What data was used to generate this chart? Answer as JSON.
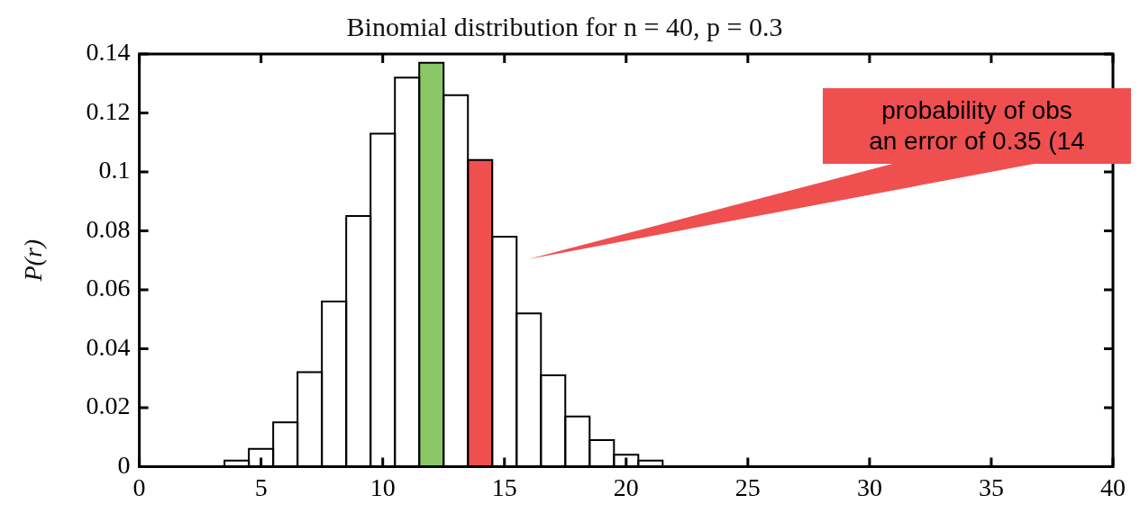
{
  "chart_data": {
    "type": "histogram",
    "title": "Binomial distribution for n = 40, p = 0.3",
    "ylabel": "P(r)",
    "bins": [
      3.5,
      4.5,
      5.5,
      6.5,
      7.5,
      8.5,
      9.5,
      10.5,
      11.5,
      12.5,
      13.5,
      14.5,
      15.5,
      16.5,
      17.5,
      18.5,
      19.5,
      20.5,
      21.5
    ],
    "values": [
      0.002,
      0.006,
      0.015,
      0.032,
      0.056,
      0.085,
      0.113,
      0.132,
      0.137,
      0.126,
      0.104,
      0.078,
      0.052,
      0.031,
      0.017,
      0.009,
      0.004,
      0.002
    ],
    "colors": [
      "#ffffff",
      "#ffffff",
      "#ffffff",
      "#ffffff",
      "#ffffff",
      "#ffffff",
      "#ffffff",
      "#ffffff",
      "#8bc766",
      "#ffffff",
      "#ef4f4f",
      "#ffffff",
      "#ffffff",
      "#ffffff",
      "#ffffff",
      "#ffffff",
      "#ffffff",
      "#ffffff"
    ],
    "xlim": [
      0,
      40
    ],
    "xticks": [
      0,
      5,
      10,
      15,
      20,
      25,
      30,
      35,
      40
    ],
    "ylim": [
      0,
      0.14
    ],
    "yticks": [
      0,
      0.02,
      0.04,
      0.06,
      0.08,
      0.1,
      0.12,
      0.14
    ],
    "grid": false,
    "legend": false,
    "annotations": [
      "probability of obs\nan error of 0.35 (14"
    ]
  }
}
